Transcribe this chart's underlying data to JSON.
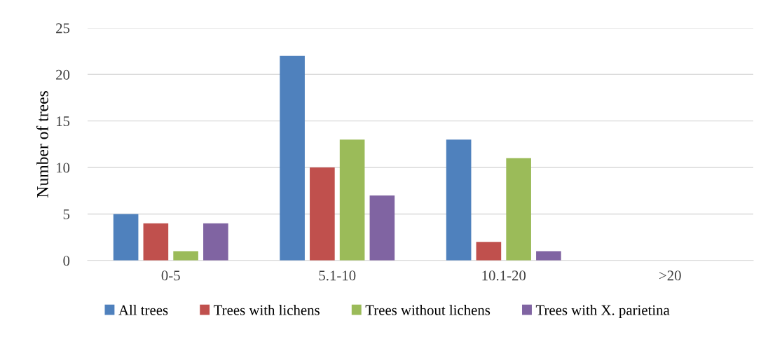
{
  "chart_data": {
    "type": "bar",
    "ylabel": "Number of trees",
    "categories": [
      "0-5",
      "5.1-10",
      "10.1-20",
      ">20"
    ],
    "series": [
      {
        "name": "All trees",
        "color": "#4f81bd",
        "values": [
          5,
          22,
          13,
          0
        ]
      },
      {
        "name": "Trees with lichens",
        "color": "#c0504d",
        "values": [
          4,
          10,
          2,
          0
        ]
      },
      {
        "name": "Trees without lichens",
        "color": "#9bbb59",
        "values": [
          1,
          13,
          11,
          0
        ]
      },
      {
        "name": "Trees with X. parietina",
        "color": "#8064a2",
        "values": [
          4,
          7,
          1,
          0
        ]
      }
    ],
    "ylim": [
      0,
      25
    ],
    "yticks": [
      0,
      5,
      10,
      15,
      20,
      25
    ],
    "grid": "y",
    "legend": "bottom"
  }
}
